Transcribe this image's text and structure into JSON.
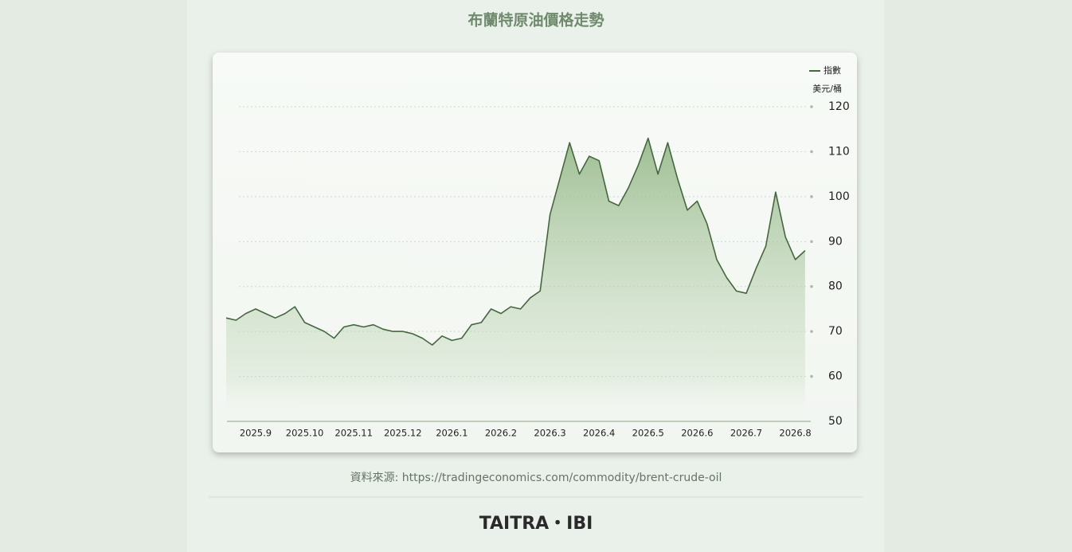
{
  "chart_data": {
    "type": "area",
    "title": "布蘭特原油價格走勢",
    "y_label": "美元/桶",
    "source": "資料來源: https://tradingeconomics.com/commodity/brent-crude-oil",
    "categories": [
      null,
      null,
      null,
      "2025.9",
      null,
      null,
      null,
      null,
      "2025.10",
      null,
      null,
      null,
      null,
      "2025.11",
      null,
      null,
      null,
      null,
      "2025.12",
      null,
      null,
      null,
      null,
      "2026.1",
      null,
      null,
      null,
      null,
      "2026.2",
      null,
      null,
      null,
      null,
      "2026.3",
      null,
      null,
      null,
      null,
      "2026.4",
      null,
      null,
      null,
      null,
      "2026.5",
      null,
      null,
      null,
      null,
      "2026.6",
      null,
      null,
      null,
      null,
      "2026.7",
      null,
      null,
      null,
      null,
      "2026.8",
      null
    ],
    "series": [
      {
        "name": "指數",
        "color": "#46663f",
        "values": [
          73,
          72.5,
          74,
          75,
          74,
          73,
          74,
          75.5,
          72,
          71,
          70,
          68.5,
          71,
          71.5,
          71,
          71.5,
          70.5,
          70,
          70,
          69.5,
          68.5,
          67,
          69,
          68,
          68.5,
          71.5,
          72,
          75,
          74,
          75.5,
          75,
          77.5,
          79,
          96,
          104,
          112,
          105,
          109,
          108,
          99,
          98,
          102,
          107,
          113,
          105,
          112,
          104,
          97,
          99,
          94,
          86,
          82,
          79,
          78.5,
          84,
          89,
          101,
          91,
          86,
          88
        ]
      }
    ],
    "ylim": [
      50,
      120
    ],
    "yticks": [
      50,
      60,
      70,
      80,
      90,
      100,
      110,
      120
    ],
    "grid": true,
    "legend": "top-right"
  },
  "footer": "TAITRA・IBI"
}
